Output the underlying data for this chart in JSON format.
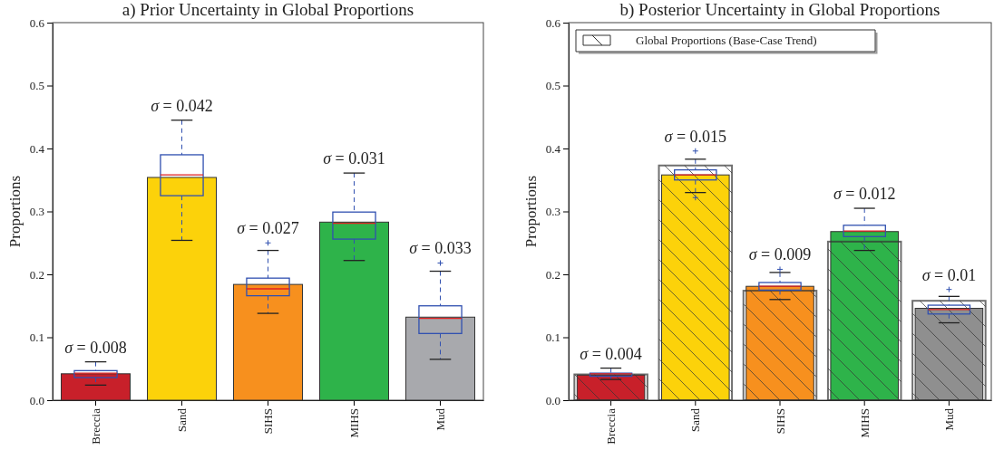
{
  "chart_data": [
    {
      "type": "bar",
      "title": "a) Prior Uncertainty in Global Proportions",
      "ylabel": "Proportions",
      "categories": [
        "Breccia",
        "Sand",
        "SIHS",
        "MIHS",
        "Mud"
      ],
      "series": [
        {
          "colors": [
            "#c8202a",
            "#fcd20a",
            "#f7901e",
            "#2eb34a",
            "#a8a9ad"
          ],
          "values": [
            0.042,
            0.354,
            0.184,
            0.283,
            0.132
          ]
        },
        {
          "type": "box",
          "color": "#3050b0",
          "boxes": [
            {
              "low": 0.024,
              "q1": 0.036,
              "median": 0.043,
              "q3": 0.047,
              "high": 0.061
            },
            {
              "low": 0.254,
              "q1": 0.325,
              "median": 0.358,
              "q3": 0.39,
              "high": 0.445
            },
            {
              "low": 0.138,
              "q1": 0.166,
              "median": 0.177,
              "q3": 0.194,
              "high": 0.238,
              "outliers": [
                0.25
              ]
            },
            {
              "low": 0.222,
              "q1": 0.256,
              "median": 0.281,
              "q3": 0.299,
              "high": 0.361
            },
            {
              "low": 0.065,
              "q1": 0.106,
              "median": 0.13,
              "q3": 0.15,
              "high": 0.205,
              "outliers": [
                0.218
              ]
            }
          ]
        }
      ],
      "annotations": [
        "σ = 0.008",
        "σ = 0.042",
        "σ = 0.027",
        "σ = 0.031",
        "σ = 0.033"
      ],
      "ylim": [
        0,
        0.6
      ],
      "yticks": [
        {
          "value": 0,
          "label": "0.0"
        },
        0.1,
        0.2,
        0.3,
        0.4,
        0.5,
        0.6
      ],
      "legend": false
    },
    {
      "type": "bar",
      "title": "b) Posterior Uncertainty in Global Proportions",
      "ylabel": "Proportions",
      "categories": [
        "Breccia",
        "Sand",
        "SIHS",
        "MIHS",
        "Mud"
      ],
      "series": [
        {
          "colors": [
            "#c8202a",
            "#fcd20a",
            "#f7901e",
            "#2eb34a",
            "#8f8f8f"
          ],
          "values": [
            0.04,
            0.358,
            0.181,
            0.268,
            0.146
          ]
        },
        {
          "name": "Global Proportions (Base-Case Trend)",
          "color": "#333333",
          "values": [
            0.041,
            0.373,
            0.174,
            0.252,
            0.158
          ]
        },
        {
          "type": "box",
          "color": "#3050b0",
          "boxes": [
            {
              "low": 0.033,
              "q1": 0.038,
              "median": 0.042,
              "q3": 0.043,
              "high": 0.051
            },
            {
              "low": 0.33,
              "q1": 0.35,
              "median": 0.358,
              "q3": 0.366,
              "high": 0.383,
              "outliers": [
                0.396,
                0.322
              ]
            },
            {
              "low": 0.16,
              "q1": 0.175,
              "median": 0.181,
              "q3": 0.187,
              "high": 0.203,
              "outliers": [
                0.208
              ]
            },
            {
              "low": 0.238,
              "q1": 0.26,
              "median": 0.269,
              "q3": 0.278,
              "high": 0.305
            },
            {
              "low": 0.123,
              "q1": 0.137,
              "median": 0.144,
              "q3": 0.151,
              "high": 0.165,
              "outliers": [
                0.176
              ]
            }
          ]
        }
      ],
      "annotations": [
        "σ = 0.004",
        "σ = 0.015",
        "σ = 0.009",
        "σ = 0.012",
        "σ = 0.01"
      ],
      "ylim": [
        0,
        0.6
      ],
      "yticks": [
        {
          "value": 0,
          "label": "0.0"
        },
        0.1,
        0.2,
        0.3,
        0.4,
        0.5,
        0.6
      ],
      "legend": "top left"
    }
  ]
}
